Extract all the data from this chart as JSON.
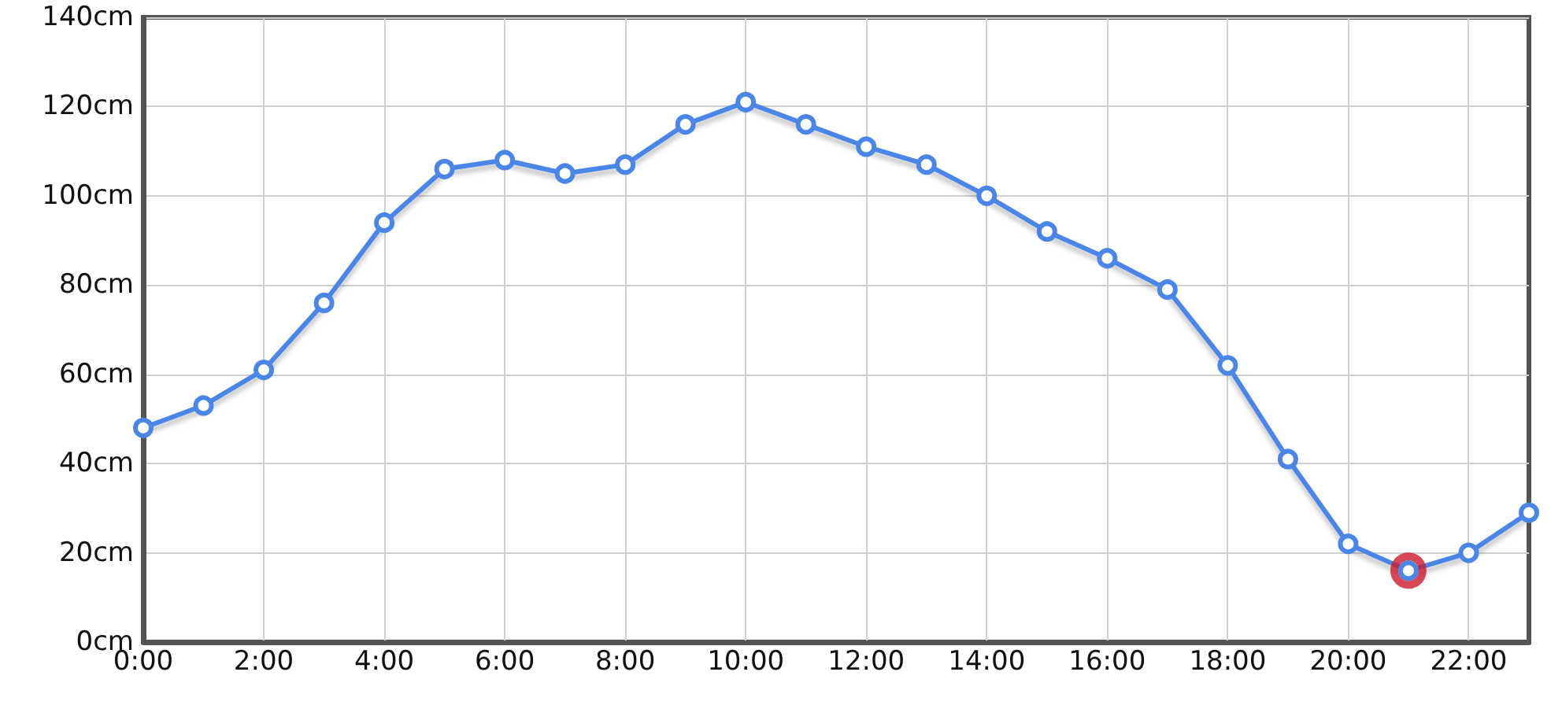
{
  "chart_data": {
    "type": "line",
    "x": [
      0,
      1,
      2,
      3,
      4,
      5,
      6,
      7,
      8,
      9,
      10,
      11,
      12,
      13,
      14,
      15,
      16,
      17,
      18,
      19,
      20,
      21,
      22,
      23
    ],
    "series": [
      {
        "color": "#4a86e8",
        "values": [
          48,
          53,
          61,
          76,
          94,
          106,
          108,
          105,
          107,
          116,
          121,
          116,
          111,
          107,
          100,
          92,
          86,
          79,
          62,
          41,
          22,
          16,
          20,
          29
        ]
      },
      {
        "type": "scatter",
        "color": "#cc1a2a",
        "x": [
          21
        ],
        "values": [
          16
        ]
      }
    ],
    "xlim": [
      0,
      23
    ],
    "xticks": [
      {
        "value": 0,
        "label": "0:00"
      },
      {
        "value": 2,
        "label": "2:00"
      },
      {
        "value": 4,
        "label": "4:00"
      },
      {
        "value": 6,
        "label": "6:00"
      },
      {
        "value": 8,
        "label": "8:00"
      },
      {
        "value": 10,
        "label": "10:00"
      },
      {
        "value": 12,
        "label": "12:00"
      },
      {
        "value": 14,
        "label": "14:00"
      },
      {
        "value": 16,
        "label": "16:00"
      },
      {
        "value": 18,
        "label": "18:00"
      },
      {
        "value": 20,
        "label": "20:00"
      },
      {
        "value": 22,
        "label": "22:00"
      }
    ],
    "ylim": [
      0,
      140
    ],
    "yticks": [
      {
        "value": 0,
        "label": "0cm"
      },
      {
        "value": 20,
        "label": "20cm"
      },
      {
        "value": 40,
        "label": "40cm"
      },
      {
        "value": 60,
        "label": "60cm"
      },
      {
        "value": 80,
        "label": "80cm"
      },
      {
        "value": 100,
        "label": "100cm"
      },
      {
        "value": 120,
        "label": "120cm"
      },
      {
        "value": 140,
        "label": "140cm"
      }
    ],
    "grid": true,
    "marker": "circle",
    "line_style": "solid"
  }
}
